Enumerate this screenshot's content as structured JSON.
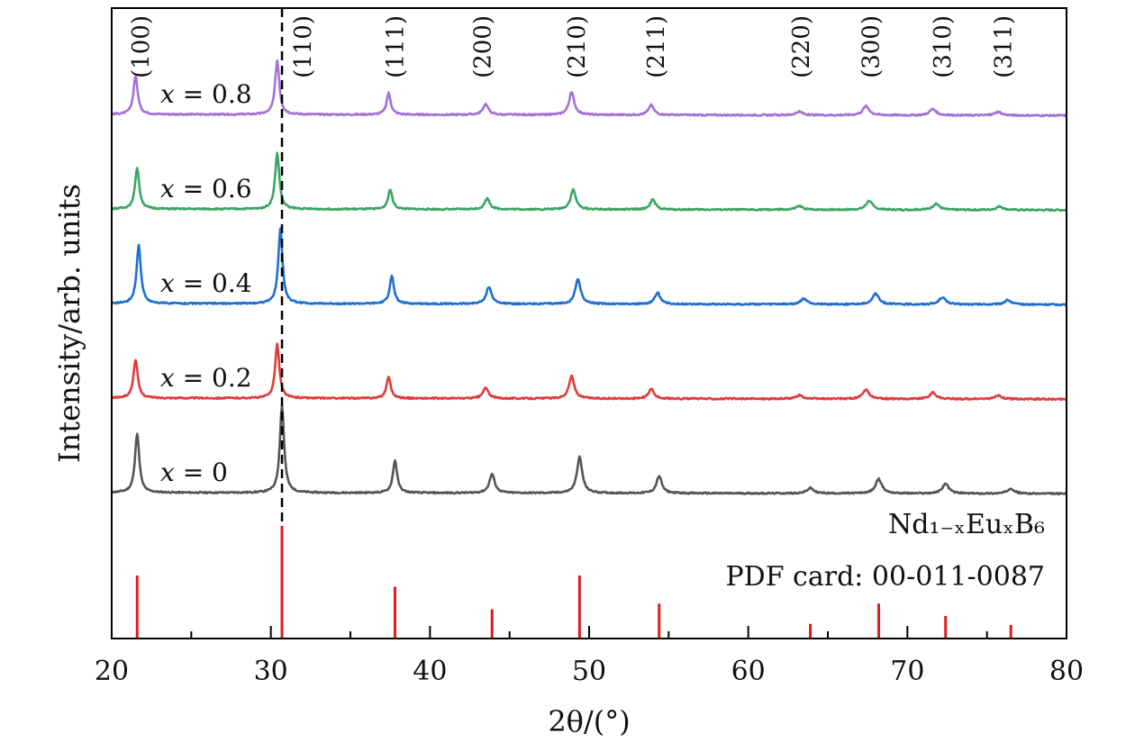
{
  "chart_data": {
    "type": "line",
    "title": "",
    "xlabel": "2θ/(°)",
    "ylabel": "Intensity/arb. units",
    "xlim": [
      20,
      80
    ],
    "x_ticks": [
      20,
      30,
      40,
      50,
      60,
      70,
      80
    ],
    "x_tick_labels": [
      "20",
      "30",
      "40",
      "50",
      "60",
      "70",
      "80"
    ],
    "grid": false,
    "legend": "inline labels on left",
    "dashed_reference_x": 30.7,
    "compound": "Nd₁₋ₓEuₓB₆",
    "reference_card": "PDF card: 00-011-0087",
    "hkl_labels": [
      {
        "label": "(100)",
        "x": 21.8
      },
      {
        "label": "(110)",
        "x": 32.0
      },
      {
        "label": "(111)",
        "x": 37.8
      },
      {
        "label": "(200)",
        "x": 43.3
      },
      {
        "label": "(210)",
        "x": 49.2
      },
      {
        "label": "(211)",
        "x": 54.2
      },
      {
        "label": "(220)",
        "x": 63.3
      },
      {
        "label": "(300)",
        "x": 67.7
      },
      {
        "label": "(310)",
        "x": 72.2
      },
      {
        "label": "(311)",
        "x": 76.0
      }
    ],
    "reference_peaks": [
      {
        "x": 21.6,
        "intensity": 0.56
      },
      {
        "x": 30.7,
        "intensity": 1.0
      },
      {
        "x": 37.8,
        "intensity": 0.46
      },
      {
        "x": 43.9,
        "intensity": 0.26
      },
      {
        "x": 49.4,
        "intensity": 0.56
      },
      {
        "x": 54.4,
        "intensity": 0.31
      },
      {
        "x": 63.9,
        "intensity": 0.13
      },
      {
        "x": 68.2,
        "intensity": 0.31
      },
      {
        "x": 72.4,
        "intensity": 0.2
      },
      {
        "x": 76.5,
        "intensity": 0.12
      }
    ],
    "series": [
      {
        "name": "x = 0",
        "composition": "0",
        "color": "#555555",
        "offset": 0,
        "peaks": [
          {
            "x": 21.6,
            "intensity": 0.66
          },
          {
            "x": 30.7,
            "intensity": 0.97
          },
          {
            "x": 37.8,
            "intensity": 0.36
          },
          {
            "x": 43.9,
            "intensity": 0.21
          },
          {
            "x": 49.4,
            "intensity": 0.4
          },
          {
            "x": 54.4,
            "intensity": 0.19
          },
          {
            "x": 63.9,
            "intensity": 0.06
          },
          {
            "x": 68.2,
            "intensity": 0.16
          },
          {
            "x": 72.4,
            "intensity": 0.11
          },
          {
            "x": 76.5,
            "intensity": 0.06
          }
        ]
      },
      {
        "name": "x = 0.2",
        "composition": "0.2",
        "color": "#e03c3c",
        "offset": 1,
        "peaks": [
          {
            "x": 21.5,
            "intensity": 0.43
          },
          {
            "x": 30.4,
            "intensity": 0.6
          },
          {
            "x": 37.4,
            "intensity": 0.24
          },
          {
            "x": 43.5,
            "intensity": 0.12
          },
          {
            "x": 48.9,
            "intensity": 0.25
          },
          {
            "x": 53.9,
            "intensity": 0.11
          },
          {
            "x": 63.2,
            "intensity": 0.04
          },
          {
            "x": 67.4,
            "intensity": 0.1
          },
          {
            "x": 71.6,
            "intensity": 0.07
          },
          {
            "x": 75.7,
            "intensity": 0.04
          }
        ]
      },
      {
        "name": "x = 0.4",
        "composition": "0.4",
        "color": "#1f6fd1",
        "offset": 2,
        "peaks": [
          {
            "x": 21.7,
            "intensity": 0.65
          },
          {
            "x": 30.6,
            "intensity": 0.83
          },
          {
            "x": 37.6,
            "intensity": 0.31
          },
          {
            "x": 43.7,
            "intensity": 0.19
          },
          {
            "x": 49.3,
            "intensity": 0.28
          },
          {
            "x": 54.3,
            "intensity": 0.13
          },
          {
            "x": 63.5,
            "intensity": 0.06
          },
          {
            "x": 68.0,
            "intensity": 0.12
          },
          {
            "x": 72.2,
            "intensity": 0.08
          },
          {
            "x": 76.3,
            "intensity": 0.05
          }
        ]
      },
      {
        "name": "x = 0.6",
        "composition": "0.6",
        "color": "#3aa566",
        "offset": 3,
        "peaks": [
          {
            "x": 21.6,
            "intensity": 0.46
          },
          {
            "x": 30.4,
            "intensity": 0.62
          },
          {
            "x": 37.5,
            "intensity": 0.22
          },
          {
            "x": 43.6,
            "intensity": 0.12
          },
          {
            "x": 49.0,
            "intensity": 0.22
          },
          {
            "x": 54.0,
            "intensity": 0.11
          },
          {
            "x": 63.2,
            "intensity": 0.04
          },
          {
            "x": 67.6,
            "intensity": 0.1
          },
          {
            "x": 71.8,
            "intensity": 0.07
          },
          {
            "x": 75.8,
            "intensity": 0.04
          }
        ]
      },
      {
        "name": "x = 0.8",
        "composition": "0.8",
        "color": "#a570d8",
        "offset": 4,
        "peaks": [
          {
            "x": 21.5,
            "intensity": 0.43
          },
          {
            "x": 30.4,
            "intensity": 0.6
          },
          {
            "x": 37.4,
            "intensity": 0.24
          },
          {
            "x": 43.5,
            "intensity": 0.12
          },
          {
            "x": 48.9,
            "intensity": 0.25
          },
          {
            "x": 53.9,
            "intensity": 0.11
          },
          {
            "x": 63.2,
            "intensity": 0.04
          },
          {
            "x": 67.4,
            "intensity": 0.1
          },
          {
            "x": 71.6,
            "intensity": 0.07
          },
          {
            "x": 75.7,
            "intensity": 0.04
          }
        ]
      }
    ]
  }
}
